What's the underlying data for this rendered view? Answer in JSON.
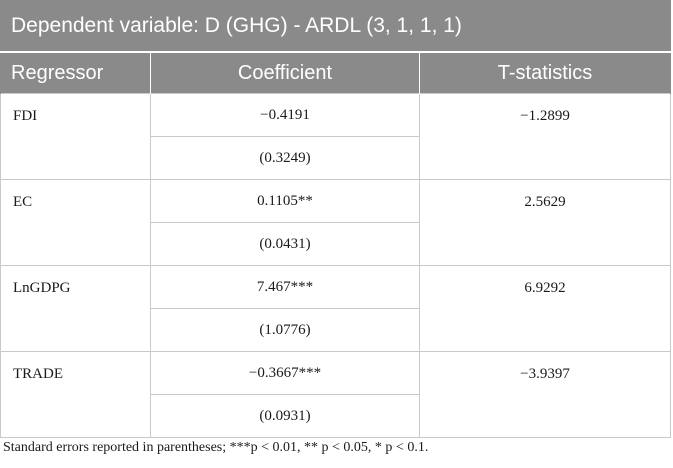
{
  "table": {
    "title": "Dependent variable: D (GHG) - ARDL (3, 1, 1, 1)",
    "headers": {
      "regressor": "Regressor",
      "coefficient": "Coefficient",
      "tstat": "T-statistics"
    },
    "rows": [
      {
        "regressor": "FDI",
        "coefficient": "−0.4191",
        "std_error": "(0.3249)",
        "tstat": "−1.2899"
      },
      {
        "regressor": "EC",
        "coefficient": "0.1105**",
        "std_error": "(0.0431)",
        "tstat": "2.5629"
      },
      {
        "regressor": "LnGDPG",
        "coefficient": "7.467***",
        "std_error": "(1.0776)",
        "tstat": "6.9292"
      },
      {
        "regressor": "TRADE",
        "coefficient": "−0.3667***",
        "std_error": "(0.0931)",
        "tstat": "−3.9397"
      }
    ]
  },
  "footnote": "Standard errors reported in parentheses; ***p < 0.01, ** p < 0.05, * p < 0.1.",
  "colors": {
    "header_bg": "#8a8a8a",
    "header_text": "#ffffff",
    "grid_line": "#c9c9c9"
  }
}
